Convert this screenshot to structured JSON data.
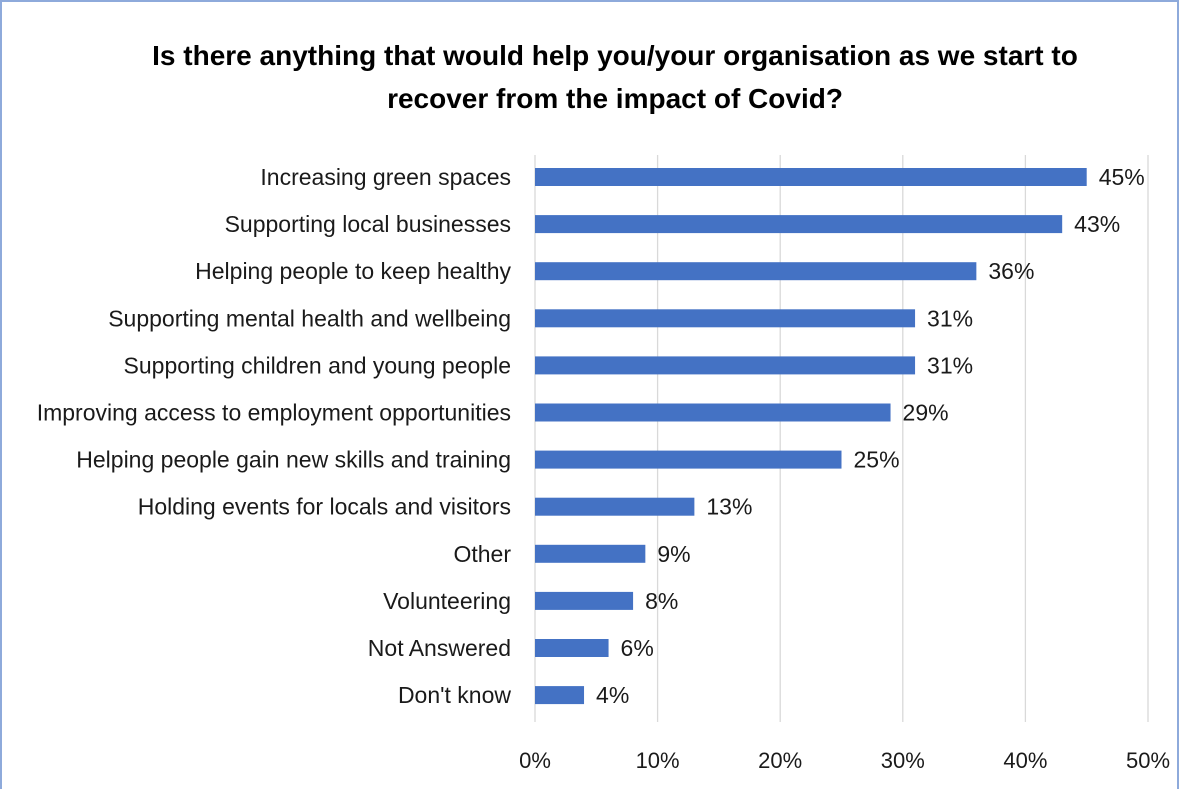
{
  "chart_data": {
    "type": "bar",
    "orientation": "horizontal",
    "title": "Is there anything that would help you/your organisation as we start to recover from the impact of Covid?",
    "categories": [
      "Increasing green spaces",
      "Supporting local businesses",
      "Helping people to keep healthy",
      "Supporting mental health and wellbeing",
      "Supporting children and young people",
      "Improving access to employment opportunities",
      "Helping people gain new skills and training",
      "Holding events for locals and visitors",
      "Other",
      "Volunteering",
      "Not Answered",
      "Don't know"
    ],
    "values": [
      45,
      43,
      36,
      31,
      31,
      29,
      25,
      13,
      9,
      8,
      6,
      4
    ],
    "data_labels": [
      "45%",
      "43%",
      "36%",
      "31%",
      "31%",
      "29%",
      "25%",
      "13%",
      "9%",
      "8%",
      "6%",
      "4%"
    ],
    "xlim": [
      0,
      50
    ],
    "x_ticks": [
      0,
      10,
      20,
      30,
      40,
      50
    ],
    "x_tick_labels": [
      "0%",
      "10%",
      "20%",
      "30%",
      "40%",
      "50%"
    ],
    "xlabel": "",
    "ylabel": "",
    "grid": true,
    "legend": "none",
    "bar_color": "#4472c4",
    "grid_color": "#d9d9d9"
  }
}
